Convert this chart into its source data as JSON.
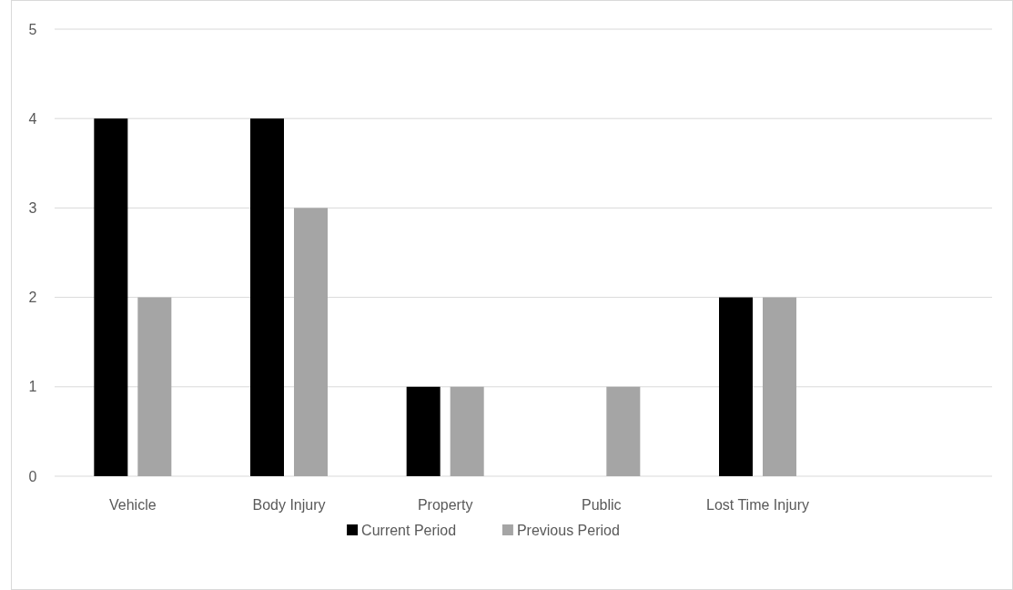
{
  "chart_data": {
    "type": "bar",
    "categories": [
      "Vehicle",
      "Body Injury",
      "Property",
      "Public",
      "Lost Time Injury",
      null
    ],
    "series": [
      {
        "name": "Current Period",
        "color": "#000000",
        "values": [
          4,
          4,
          1,
          0,
          2,
          null
        ]
      },
      {
        "name": "Previous Period",
        "color": "#a5a5a5",
        "values": [
          2,
          3,
          1,
          1,
          2,
          null
        ]
      }
    ],
    "ylim": [
      0,
      5
    ],
    "yticks": [
      0,
      1,
      2,
      3,
      4,
      5
    ],
    "grid": "y",
    "legend": "bottom"
  }
}
